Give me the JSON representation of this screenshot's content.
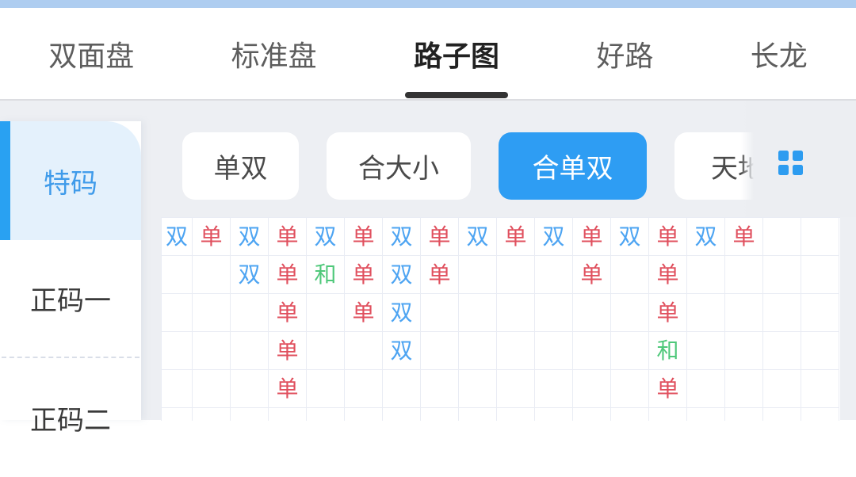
{
  "tab_bar": {
    "items": [
      {
        "label": "双面盘"
      },
      {
        "label": "标准盘"
      },
      {
        "label": "路子图"
      },
      {
        "label": "好路"
      },
      {
        "label": "长龙"
      }
    ],
    "active_index": 2
  },
  "sidebar": {
    "items": [
      {
        "label": "特码"
      },
      {
        "label": "正码一"
      },
      {
        "label": "正码二"
      }
    ],
    "active_index": 0
  },
  "filter_bar": {
    "items": [
      {
        "label": "单双"
      },
      {
        "label": "合大小"
      },
      {
        "label": "合单双"
      },
      {
        "label": "天地"
      }
    ],
    "active_index": 2,
    "grid_view_icon": "grid-2x2-icon"
  },
  "roadmap": {
    "symbols": {
      "shuang": {
        "char": "双",
        "color": "#4da4f2"
      },
      "dan": {
        "char": "单",
        "color": "#e0505e"
      },
      "he": {
        "char": "和",
        "color": "#4fc87a"
      }
    },
    "columns": 18,
    "rows": [
      [
        "双",
        "单",
        "双",
        "单",
        "双",
        "单",
        "双",
        "单",
        "双",
        "单",
        "双",
        "单",
        "双",
        "单",
        "双",
        "单",
        "",
        ""
      ],
      [
        "",
        "",
        "双",
        "单",
        "和",
        "单",
        "双",
        "单",
        "",
        "",
        "",
        "单",
        "",
        "单",
        "",
        "",
        "",
        ""
      ],
      [
        "",
        "",
        "",
        "单",
        "",
        "单",
        "双",
        "",
        "",
        "",
        "",
        "",
        "",
        "单",
        "",
        "",
        "",
        ""
      ],
      [
        "",
        "",
        "",
        "单",
        "",
        "",
        "双",
        "",
        "",
        "",
        "",
        "",
        "",
        "和",
        "",
        "",
        "",
        ""
      ],
      [
        "",
        "",
        "",
        "单",
        "",
        "",
        "",
        "",
        "",
        "",
        "",
        "",
        "",
        "单",
        "",
        "",
        "",
        ""
      ],
      [
        "",
        "",
        "",
        "",
        "",
        "",
        "",
        "",
        "",
        "",
        "",
        "",
        "",
        "",
        "",
        "",
        "",
        ""
      ]
    ]
  },
  "colors": {
    "status_strip": "#aecdf0",
    "page_bg": "#edeff3",
    "accent_blue": "#2e9df3",
    "active_tab_underline": "#333333",
    "sidebar_active_bg": "#e4f1fc",
    "sidebar_active_text": "#3f9bea",
    "sidebar_indicator": "#29a1f2",
    "grid_line": "#e9ecf4",
    "shuang_blue": "#4da4f2",
    "dan_red": "#e0505e",
    "he_green": "#4fc87a"
  }
}
